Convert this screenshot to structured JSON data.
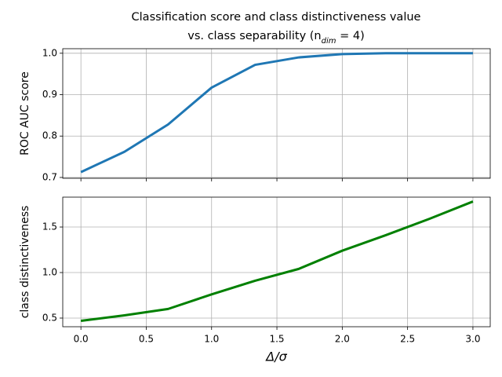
{
  "chart_data": [
    {
      "type": "line",
      "title": [
        "Classification score and class distinctiveness value",
        "vs. class separability (n_dim = 4)"
      ],
      "ylabel": "ROC AUC score",
      "x": [
        0,
        0.333,
        0.667,
        1,
        1.333,
        1.667,
        2,
        2.333,
        2.667,
        3
      ],
      "series": [
        {
          "color": "#1f77b4",
          "values": [
            0.713,
            0.762,
            0.828,
            0.917,
            0.972,
            0.99,
            0.998,
            1.0,
            1.0,
            1.0
          ]
        }
      ],
      "xlim": [
        -0.139,
        3.1325
      ],
      "ylim": [
        0.698,
        1.011
      ],
      "xticks": [
        {
          "value": 0,
          "label": "0.0"
        },
        0.5,
        {
          "value": 1,
          "label": "1.0"
        },
        1.5,
        {
          "value": 2,
          "label": "2.0"
        },
        2.5,
        {
          "value": 3,
          "label": "3.0"
        }
      ],
      "xtick_labels_shown": false,
      "yticks": [
        0.7,
        0.8,
        0.9,
        {
          "value": 1,
          "label": "1.0"
        }
      ],
      "grid": true
    },
    {
      "type": "line",
      "xlabel": "Δ/σ",
      "ylabel": "class distinctiveness",
      "x": [
        0,
        0.333,
        0.667,
        1,
        1.333,
        1.667,
        2,
        2.333,
        2.667,
        3
      ],
      "series": [
        {
          "color": "#008000",
          "values": [
            0.47,
            0.53,
            0.6,
            0.76,
            0.91,
            1.04,
            1.24,
            1.41,
            1.59,
            1.78
          ]
        }
      ],
      "xlim": [
        -0.139,
        3.1325
      ],
      "ylim": [
        0.405,
        1.828
      ],
      "xticks": [
        {
          "value": 0,
          "label": "0.0"
        },
        0.5,
        {
          "value": 1,
          "label": "1.0"
        },
        1.5,
        {
          "value": 2,
          "label": "2.0"
        },
        2.5,
        {
          "value": 3,
          "label": "3.0"
        }
      ],
      "xtick_labels_shown": true,
      "yticks": [
        0.5,
        {
          "value": 1,
          "label": "1.0"
        },
        1.5
      ],
      "grid": true
    }
  ]
}
